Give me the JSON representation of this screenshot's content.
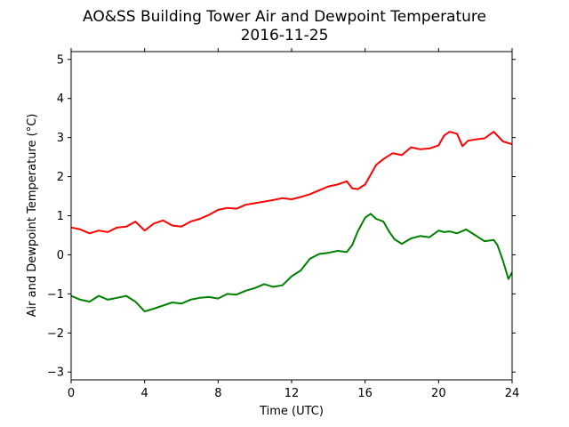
{
  "chart_data": {
    "type": "line",
    "title": "AO&SS Building Tower Air and Dewpoint Temperature",
    "subtitle": "2016-11-25",
    "xlabel": "Time (UTC)",
    "ylabel": "Air and Dewpoint Temperature (°C)",
    "xlim": [
      0,
      24
    ],
    "ylim": [
      -3.2,
      5.2
    ],
    "x_ticks": [
      0,
      4,
      8,
      12,
      16,
      20,
      24
    ],
    "y_ticks": [
      -3,
      -2,
      -1,
      0,
      1,
      2,
      3,
      4,
      5
    ],
    "grid": false,
    "legend": "none",
    "series": [
      {
        "color": "#ff0000",
        "x": [
          0,
          0.5,
          1,
          1.5,
          2,
          2.5,
          3,
          3.5,
          4,
          4.5,
          5,
          5.5,
          6,
          6.5,
          7,
          7.5,
          8,
          8.5,
          9,
          9.5,
          10,
          10.5,
          11,
          11.5,
          12,
          12.5,
          13,
          13.5,
          14,
          14.5,
          15,
          15.3,
          15.6,
          16,
          16.3,
          16.6,
          17,
          17.5,
          18,
          18.5,
          19,
          19.5,
          20,
          20.3,
          20.6,
          21,
          21.3,
          21.6,
          22,
          22.5,
          23,
          23.5,
          24
        ],
        "values": [
          0.7,
          0.65,
          0.55,
          0.62,
          0.58,
          0.7,
          0.72,
          0.85,
          0.62,
          0.8,
          0.88,
          0.75,
          0.72,
          0.85,
          0.92,
          1.02,
          1.15,
          1.2,
          1.18,
          1.28,
          1.32,
          1.36,
          1.4,
          1.45,
          1.42,
          1.48,
          1.55,
          1.65,
          1.75,
          1.8,
          1.88,
          1.7,
          1.68,
          1.8,
          2.05,
          2.3,
          2.45,
          2.6,
          2.55,
          2.75,
          2.7,
          2.72,
          2.8,
          3.05,
          3.15,
          3.1,
          2.78,
          2.92,
          2.95,
          2.98,
          3.15,
          2.9,
          2.83
        ]
      },
      {
        "color": "#008000",
        "x": [
          0,
          0.5,
          1,
          1.5,
          2,
          2.5,
          3,
          3.5,
          4,
          4.5,
          5,
          5.5,
          6,
          6.5,
          7,
          7.5,
          8,
          8.5,
          9,
          9.5,
          10,
          10.5,
          11,
          11.5,
          12,
          12.5,
          13,
          13.5,
          14,
          14.5,
          15,
          15.3,
          15.6,
          16,
          16.3,
          16.6,
          17,
          17.3,
          17.6,
          18,
          18.5,
          19,
          19.5,
          20,
          20.3,
          20.6,
          21,
          21.5,
          22,
          22.5,
          23,
          23.2,
          23.5,
          23.8,
          24
        ],
        "values": [
          -1.05,
          -1.15,
          -1.2,
          -1.05,
          -1.15,
          -1.1,
          -1.05,
          -1.2,
          -1.45,
          -1.38,
          -1.3,
          -1.22,
          -1.25,
          -1.15,
          -1.1,
          -1.08,
          -1.12,
          -1.0,
          -1.02,
          -0.92,
          -0.85,
          -0.75,
          -0.82,
          -0.78,
          -0.55,
          -0.4,
          -0.1,
          0.02,
          0.05,
          0.1,
          0.07,
          0.25,
          0.6,
          0.95,
          1.05,
          0.92,
          0.85,
          0.6,
          0.4,
          0.28,
          0.42,
          0.48,
          0.45,
          0.62,
          0.58,
          0.6,
          0.55,
          0.65,
          0.5,
          0.35,
          0.38,
          0.25,
          -0.15,
          -0.62,
          -0.45
        ]
      }
    ]
  }
}
